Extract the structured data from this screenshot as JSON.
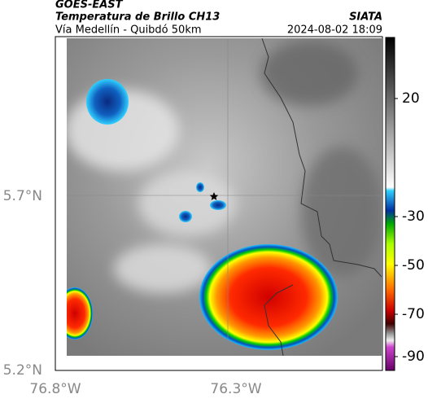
{
  "header": {
    "satellite": "GOES-EAST",
    "title": "Temperatura de Brillo CH13",
    "subtitle": "Vía Medellín - Quibdó 50km",
    "source": "SIATA",
    "datetime": "2024-08-02 18:09"
  },
  "axes": {
    "y_labels": [
      "5.7°N",
      "5.2°N"
    ],
    "x_labels": [
      "76.8°W",
      "76.3°W"
    ]
  },
  "colorbar": {
    "ticks": [
      20,
      -30,
      -50,
      -70,
      -90
    ]
  }
}
